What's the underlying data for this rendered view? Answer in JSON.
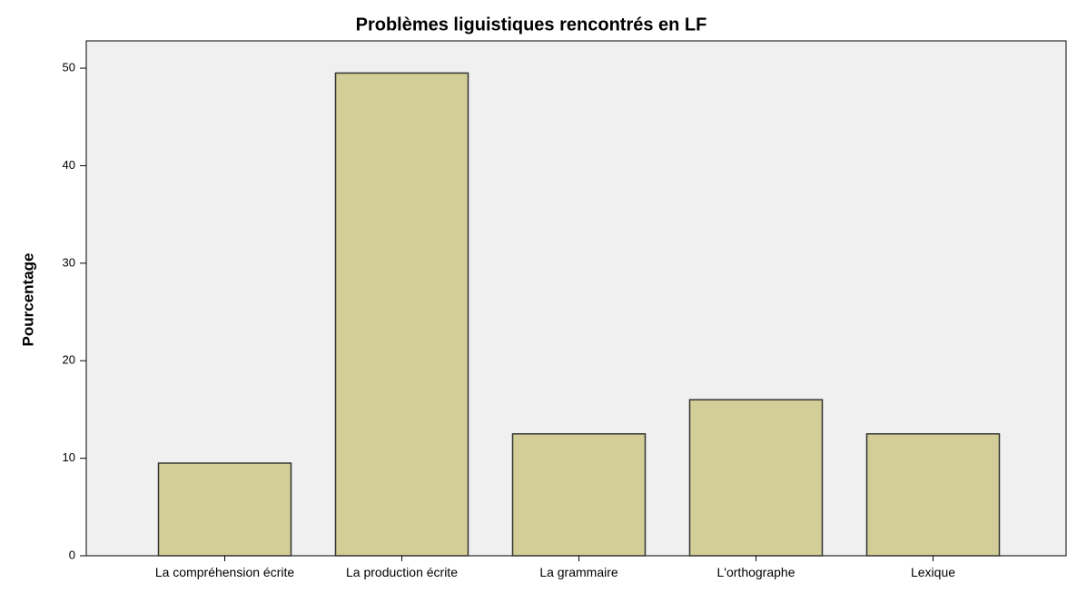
{
  "chart_data": {
    "type": "bar",
    "title": "Problèmes liguistiques rencontrés en LF",
    "y_label": "Pourcentage",
    "categories": [
      "La compréhension écrite",
      "La production écrite",
      "La grammaire",
      "L'orthographe",
      "Lexique"
    ],
    "values": [
      9.5,
      49.5,
      12.5,
      16.0,
      12.5
    ],
    "color": "#d3ce97",
    "ylim": [
      0,
      52.8
    ],
    "yticks": [
      0,
      10,
      20,
      30,
      40,
      50
    ],
    "grid": false
  }
}
